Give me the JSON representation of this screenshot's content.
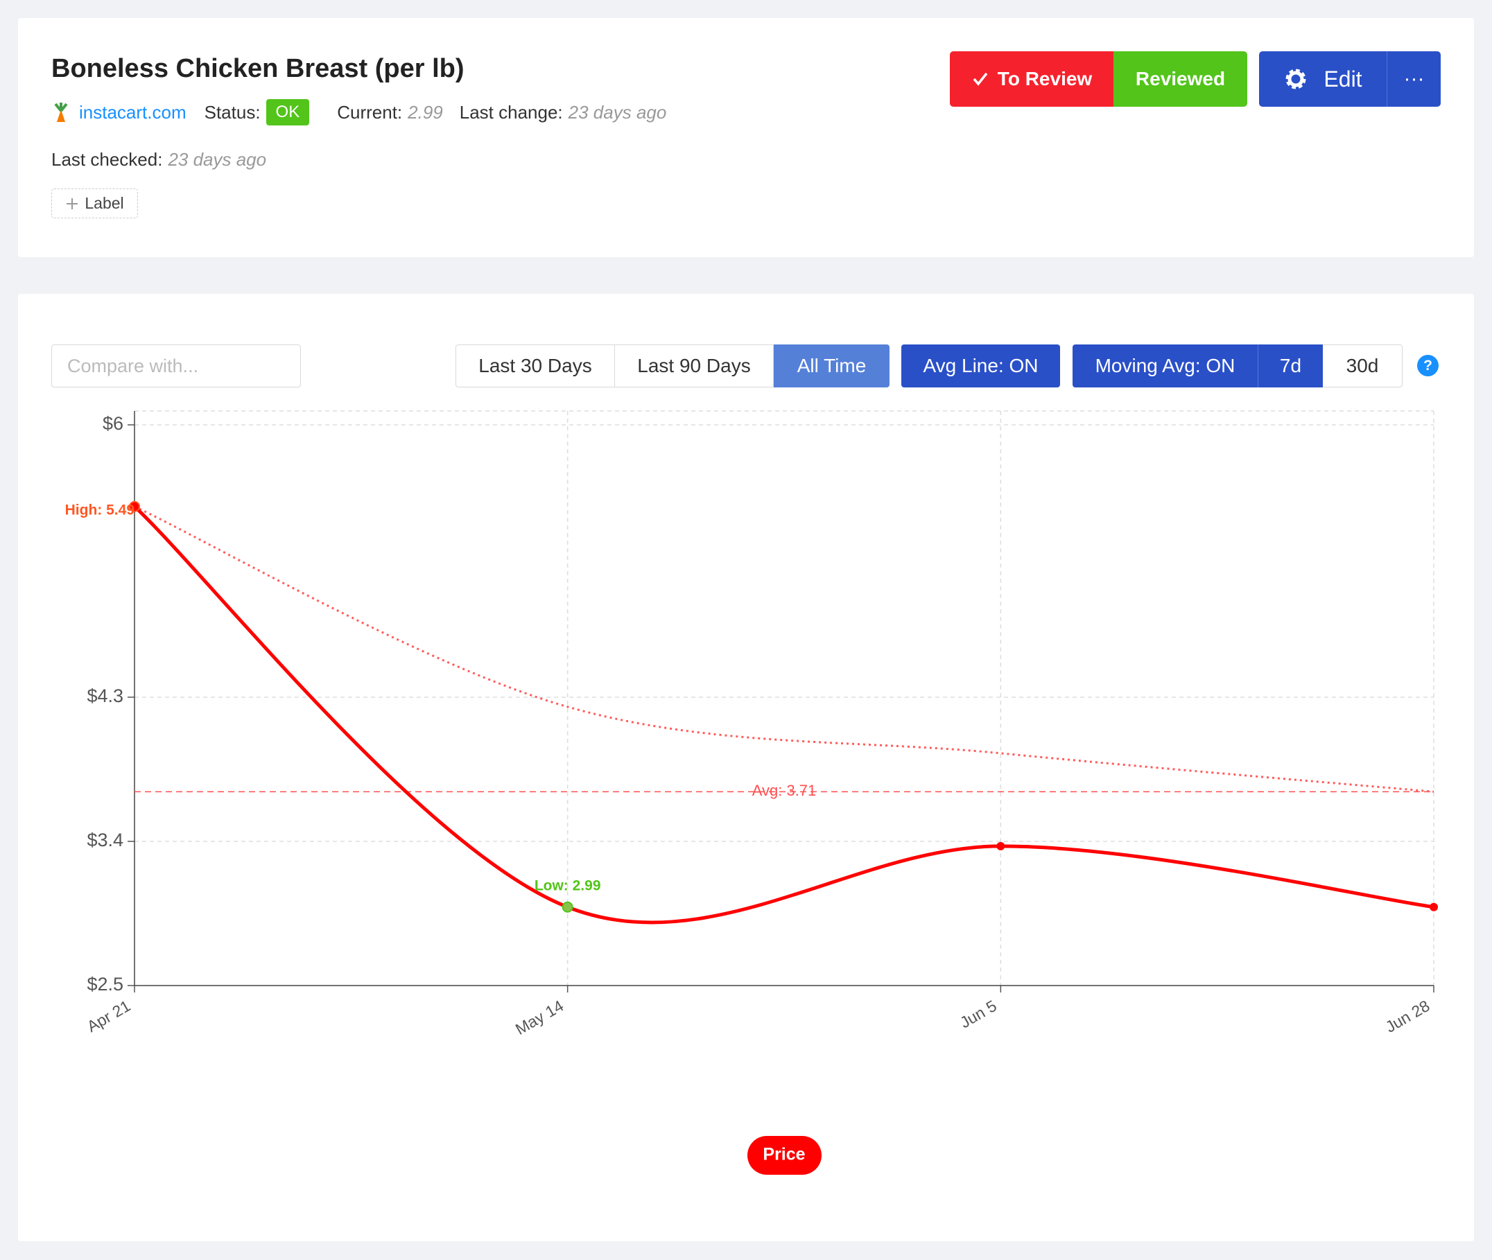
{
  "header": {
    "title": "Boneless Chicken Breast (per lb)",
    "site": "instacart.com",
    "status_label": "Status:",
    "status": "OK",
    "current_label": "Current:",
    "current": 2.99,
    "last_change_label": "Last change:",
    "last_change": "23 days ago",
    "last_checked_label": "Last checked:",
    "last_checked": "23 days ago",
    "add_label": "Label"
  },
  "actions": {
    "to_review": "To Review",
    "reviewed": "Reviewed",
    "edit": "Edit",
    "more": "···"
  },
  "toolbar": {
    "compare_placeholder": "Compare with...",
    "ranges": [
      "Last 30 Days",
      "Last 90 Days",
      "All Time"
    ],
    "avg_line": "Avg Line: ON",
    "moving_avg": "Moving Avg: ON",
    "windows": [
      "7d",
      "30d"
    ],
    "help": "?"
  },
  "chart_data": {
    "type": "line",
    "categories": [
      "Apr 21",
      "May 14",
      "Jun 5",
      "Jun 28"
    ],
    "series": [
      {
        "name": "Price",
        "color": "#ff0000",
        "values": [
          5.49,
          2.99,
          3.37,
          2.99
        ]
      }
    ],
    "moving_average": {
      "color": "#ff5c5c",
      "values": [
        5.49,
        4.24,
        3.95,
        3.71
      ]
    },
    "average": {
      "value": 3.71,
      "label": "Avg: 3.71",
      "color": "#ff4d4f"
    },
    "annotations": {
      "high": {
        "label": "High: 5.49",
        "value": 5.49,
        "color": "#ff5722"
      },
      "low": {
        "label": "Low: 2.99",
        "value": 2.99,
        "color": "#52c41a"
      }
    },
    "ylim": [
      2.5,
      6
    ],
    "yticks": [
      {
        "value": 2.5,
        "label": "$2.5"
      },
      {
        "value": 3.4,
        "label": "$3.4"
      },
      {
        "value": 4.3,
        "label": "$4.3"
      },
      {
        "value": 6,
        "label": "$6"
      }
    ],
    "grid": true,
    "legend": "bottom"
  }
}
